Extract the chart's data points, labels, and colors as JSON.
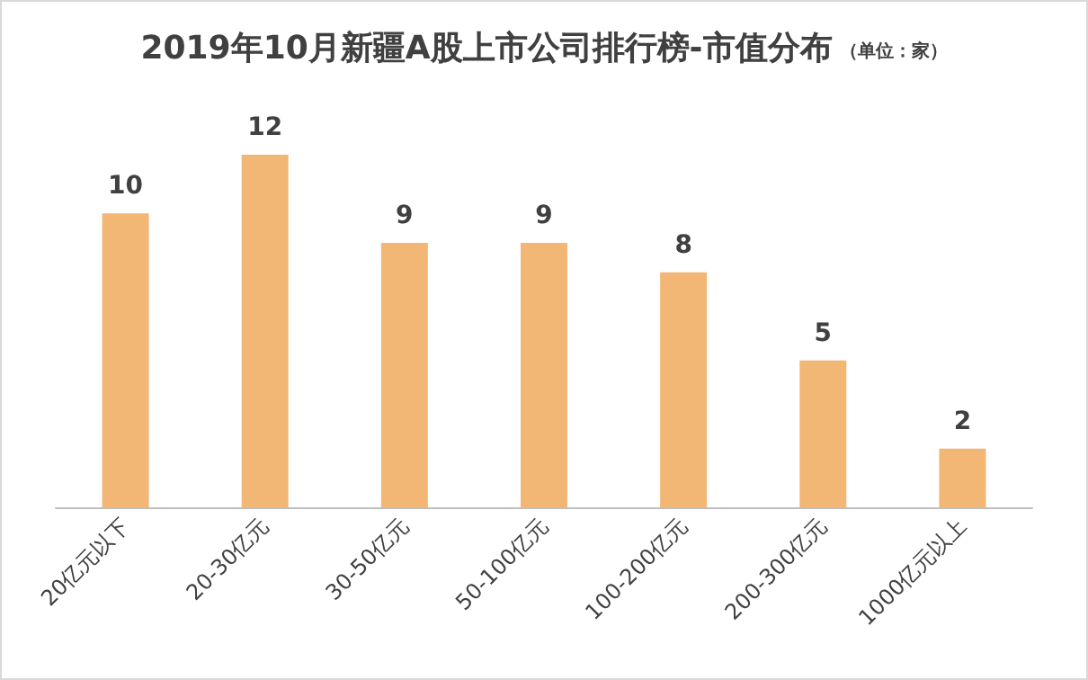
{
  "chart_data": {
    "type": "bar",
    "title": "2019年10月新疆A股上市公司排行榜-市值分布",
    "subtitle": "（单位：家）",
    "categories": [
      "20亿元以下",
      "20-30亿元",
      "30-50亿元",
      "50-100亿元",
      "100-200亿元",
      "200-300亿元",
      "1000亿元以上"
    ],
    "values": [
      10,
      12,
      9,
      9,
      8,
      5,
      2
    ],
    "color": "#f2b774",
    "data_labels": true
  }
}
